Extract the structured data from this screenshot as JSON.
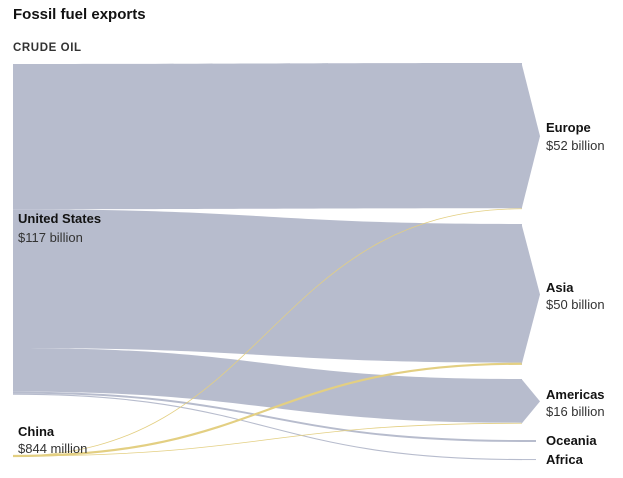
{
  "title": "Fossil fuel exports",
  "section": "CRUDE OIL",
  "colors": {
    "us_flow": "#b7bccd",
    "china_flow": "#e3cf82",
    "text": "#121212"
  },
  "chart_data": {
    "type": "sankey",
    "title": "Fossil fuel exports",
    "subtitle": "CRUDE OIL",
    "sources": [
      {
        "id": "us",
        "name": "United States",
        "value_label": "$117 billion",
        "value": 117,
        "unit": "billion USD"
      },
      {
        "id": "china",
        "name": "China",
        "value_label": "$844 million",
        "value": 0.844,
        "unit": "billion USD"
      }
    ],
    "targets": [
      {
        "id": "europe",
        "name": "Europe",
        "value_label": "$52 billion",
        "value": 52
      },
      {
        "id": "asia",
        "name": "Asia",
        "value_label": "$50 billion",
        "value": 50
      },
      {
        "id": "americas",
        "name": "Americas",
        "value_label": "$16 billion",
        "value": 16
      },
      {
        "id": "oceania",
        "name": "Oceania",
        "value_label": "",
        "value": 0.7
      },
      {
        "id": "africa",
        "name": "Africa",
        "value_label": "",
        "value": 0.1
      }
    ],
    "links": [
      {
        "source": "us",
        "target": "europe",
        "value": 51.5
      },
      {
        "source": "us",
        "target": "asia",
        "value": 49.2
      },
      {
        "source": "us",
        "target": "americas",
        "value": 15.5
      },
      {
        "source": "us",
        "target": "oceania",
        "value": 0.7
      },
      {
        "source": "us",
        "target": "africa",
        "value": 0.1
      },
      {
        "source": "china",
        "target": "asia",
        "value": 0.8
      },
      {
        "source": "china",
        "target": "europe",
        "value": 0.02
      },
      {
        "source": "china",
        "target": "americas",
        "value": 0.02
      }
    ]
  }
}
